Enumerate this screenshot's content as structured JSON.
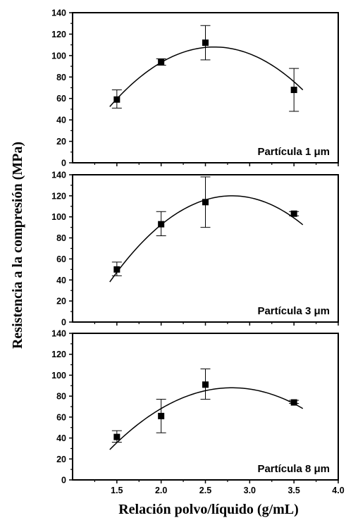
{
  "chart_data": {
    "type": "scatter",
    "xlabel": "Relación polvo/líquido (g/mL)",
    "ylabel": "Resistencia a la compresión (MPa)",
    "x_ticks": [
      "1.5",
      "2.0",
      "2.5",
      "3.0",
      "3.5",
      "4.0"
    ],
    "xlim": [
      1.0,
      4.0
    ],
    "ylim": [
      0,
      140
    ],
    "y_ticks": [
      "0",
      "20",
      "40",
      "60",
      "80",
      "100",
      "120",
      "140"
    ],
    "grid": false,
    "colors": {
      "marker": "#000000",
      "curve": "#000000",
      "axes": "#000000"
    },
    "panels": [
      {
        "label": "Partícula  1 μm",
        "points": [
          {
            "x": 1.5,
            "y": 59,
            "err_low": 51,
            "err_high": 68
          },
          {
            "x": 2.0,
            "y": 94,
            "err_low": 91,
            "err_high": 97
          },
          {
            "x": 2.5,
            "y": 112,
            "err_low": 96,
            "err_high": 128
          },
          {
            "x": 3.5,
            "y": 68,
            "err_low": 48,
            "err_high": 88
          }
        ],
        "fit": {
          "type": "quadratic",
          "vertex_x": 2.6,
          "vertex_y": 108,
          "a": -40,
          "x_range": [
            1.42,
            3.6
          ]
        }
      },
      {
        "label": "Partícula  3 μm",
        "points": [
          {
            "x": 1.5,
            "y": 50,
            "err_low": 44,
            "err_high": 57
          },
          {
            "x": 2.0,
            "y": 93,
            "err_low": 82,
            "err_high": 105
          },
          {
            "x": 2.5,
            "y": 114,
            "err_low": 90,
            "err_high": 138
          },
          {
            "x": 3.5,
            "y": 103,
            "err_low": 101,
            "err_high": 105
          }
        ],
        "fit": {
          "type": "quadratic",
          "vertex_x": 2.8,
          "vertex_y": 120,
          "a": -43,
          "x_range": [
            1.42,
            3.6
          ]
        }
      },
      {
        "label": "Partícula  8 μm",
        "points": [
          {
            "x": 1.5,
            "y": 41,
            "err_low": 36,
            "err_high": 47
          },
          {
            "x": 2.0,
            "y": 61,
            "err_low": 45,
            "err_high": 77
          },
          {
            "x": 2.5,
            "y": 91,
            "err_low": 77,
            "err_high": 106
          },
          {
            "x": 3.5,
            "y": 74,
            "err_low": 73,
            "err_high": 76
          }
        ],
        "fit": {
          "type": "quadratic",
          "vertex_x": 2.8,
          "vertex_y": 88,
          "a": -31,
          "x_range": [
            1.42,
            3.6
          ]
        }
      }
    ]
  }
}
